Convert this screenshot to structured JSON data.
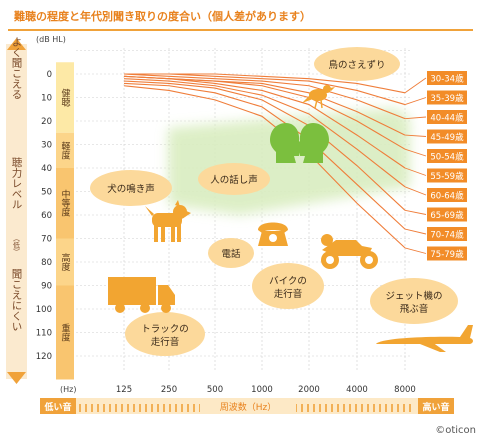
{
  "title": "難聴の程度と年代別聞き取りの度合い（個人差があります）",
  "chart_data": {
    "type": "line",
    "ylabel_unit": "(dB HL)",
    "xlabel_unit": "(Hz)",
    "x": [
      "125",
      "250",
      "500",
      "1000",
      "2000",
      "4000",
      "8000"
    ],
    "y_ticks": [
      -10,
      0,
      10,
      20,
      30,
      40,
      50,
      60,
      70,
      80,
      90,
      100,
      110,
      120
    ],
    "y_tick_labels": [
      "",
      "0",
      "10",
      "20",
      "30",
      "40",
      "50",
      "60",
      "70",
      "80",
      "90",
      "100",
      "110",
      "120"
    ],
    "ylim": [
      -10,
      130
    ],
    "series": [
      {
        "name": "30-34歳",
        "values": [
          0,
          0,
          0,
          1,
          2,
          4,
          8
        ]
      },
      {
        "name": "35-39歳",
        "values": [
          0,
          0,
          1,
          2,
          3,
          7,
          13
        ]
      },
      {
        "name": "40-44歳",
        "values": [
          0,
          1,
          2,
          3,
          5,
          11,
          19
        ]
      },
      {
        "name": "45-49歳",
        "values": [
          1,
          2,
          3,
          4,
          8,
          16,
          26
        ]
      },
      {
        "name": "50-54歳",
        "values": [
          1,
          2,
          3,
          5,
          10,
          20,
          32
        ]
      },
      {
        "name": "55-59歳",
        "values": [
          1,
          2,
          4,
          7,
          13,
          26,
          40
        ]
      },
      {
        "name": "60-64歳",
        "values": [
          2,
          3,
          5,
          9,
          17,
          32,
          48
        ]
      },
      {
        "name": "65-69歳",
        "values": [
          3,
          4,
          6,
          11,
          22,
          39,
          58
        ]
      },
      {
        "name": "70-74歳",
        "values": [
          4,
          5,
          8,
          14,
          28,
          47,
          66
        ]
      },
      {
        "name": "75-79歳",
        "values": [
          5,
          7,
          11,
          18,
          34,
          55,
          74
        ]
      }
    ]
  },
  "left_axis": {
    "easy": "よく聞こえる",
    "middle": "聴力レベル",
    "middle_paren": "（低）",
    "hard": "聞こえにくい"
  },
  "degree_bands": [
    {
      "label": "健聴",
      "from": -5,
      "to": 25
    },
    {
      "label": "軽度",
      "from": 25,
      "to": 40
    },
    {
      "label": "中等度",
      "from": 40,
      "to": 70
    },
    {
      "label": "高度",
      "from": 70,
      "to": 90
    },
    {
      "label": "重度",
      "from": 90,
      "to": 130
    }
  ],
  "sound_labels": {
    "birds": "鳥のさえずり",
    "speech": "人の話し声",
    "dog": "犬の鳴き声",
    "phone": "電話",
    "bike_line1": "バイクの",
    "bike_line2": "走行音",
    "truck_line1": "トラックの",
    "truck_line2": "走行音",
    "jet_line1": "ジェット機の",
    "jet_line2": "飛ぶ音"
  },
  "bottom_bar": {
    "low": "低い音",
    "center": "周波数（Hz）",
    "high": "高い音"
  },
  "brand": "©oticon",
  "colors": {
    "accent": "#f0a23a",
    "line": "#ef7d3a",
    "label_box": "#f28c28",
    "band1": "#fde9a6",
    "band2": "#fcd58a",
    "band3": "#f9c56f",
    "speech_zone": "#d9edc0",
    "bubble": "#fcd99b",
    "icon": "#f2a531",
    "green_head": "#7bbf3e"
  }
}
